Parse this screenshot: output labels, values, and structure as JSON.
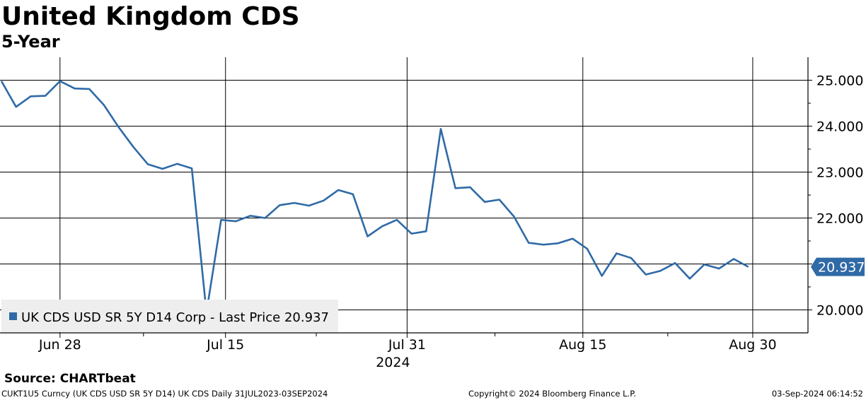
{
  "chart_data": {
    "type": "line",
    "title": "United Kingdom CDS",
    "subtitle": "5-Year",
    "ylim": [
      19.5,
      25.5
    ],
    "y_ticks": [
      "20.000",
      "21.000",
      "22.000",
      "23.000",
      "24.000",
      "25.000"
    ],
    "x_ticks": [
      "Jun 28",
      "Jul 15",
      "Jul 31",
      "Aug 15",
      "Aug 30"
    ],
    "x_year_label": "2024",
    "grid": true,
    "legend_position": "bottom-left",
    "series": [
      {
        "name": "UK CDS USD SR 5Y D14 Corp - Last Price 20.937",
        "color": "#2f6aa6",
        "last_value_label": "20.937",
        "values": [
          24.98,
          24.42,
          24.65,
          24.66,
          24.98,
          24.82,
          24.81,
          24.46,
          23.98,
          23.55,
          23.17,
          23.07,
          23.18,
          23.08,
          19.95,
          21.96,
          21.93,
          22.05,
          22.0,
          22.28,
          22.33,
          22.27,
          22.38,
          22.61,
          22.52,
          21.6,
          21.82,
          21.96,
          21.66,
          21.71,
          23.94,
          22.65,
          22.67,
          22.35,
          22.4,
          22.03,
          21.46,
          21.42,
          21.45,
          21.55,
          21.33,
          20.74,
          21.23,
          21.13,
          20.77,
          20.85,
          21.02,
          20.68,
          20.99,
          20.9,
          21.11,
          20.937
        ]
      }
    ]
  },
  "footer": {
    "source": "Source: CHARTbeat",
    "ticker_info": "CUKT1U5 Curncy (UK CDS USD SR 5Y D14) UK CDS  Daily 31JUL2023-03SEP2024",
    "copyright": "Copyright© 2024 Bloomberg Finance L.P.",
    "timestamp": "03-Sep-2024 06:14:52"
  }
}
